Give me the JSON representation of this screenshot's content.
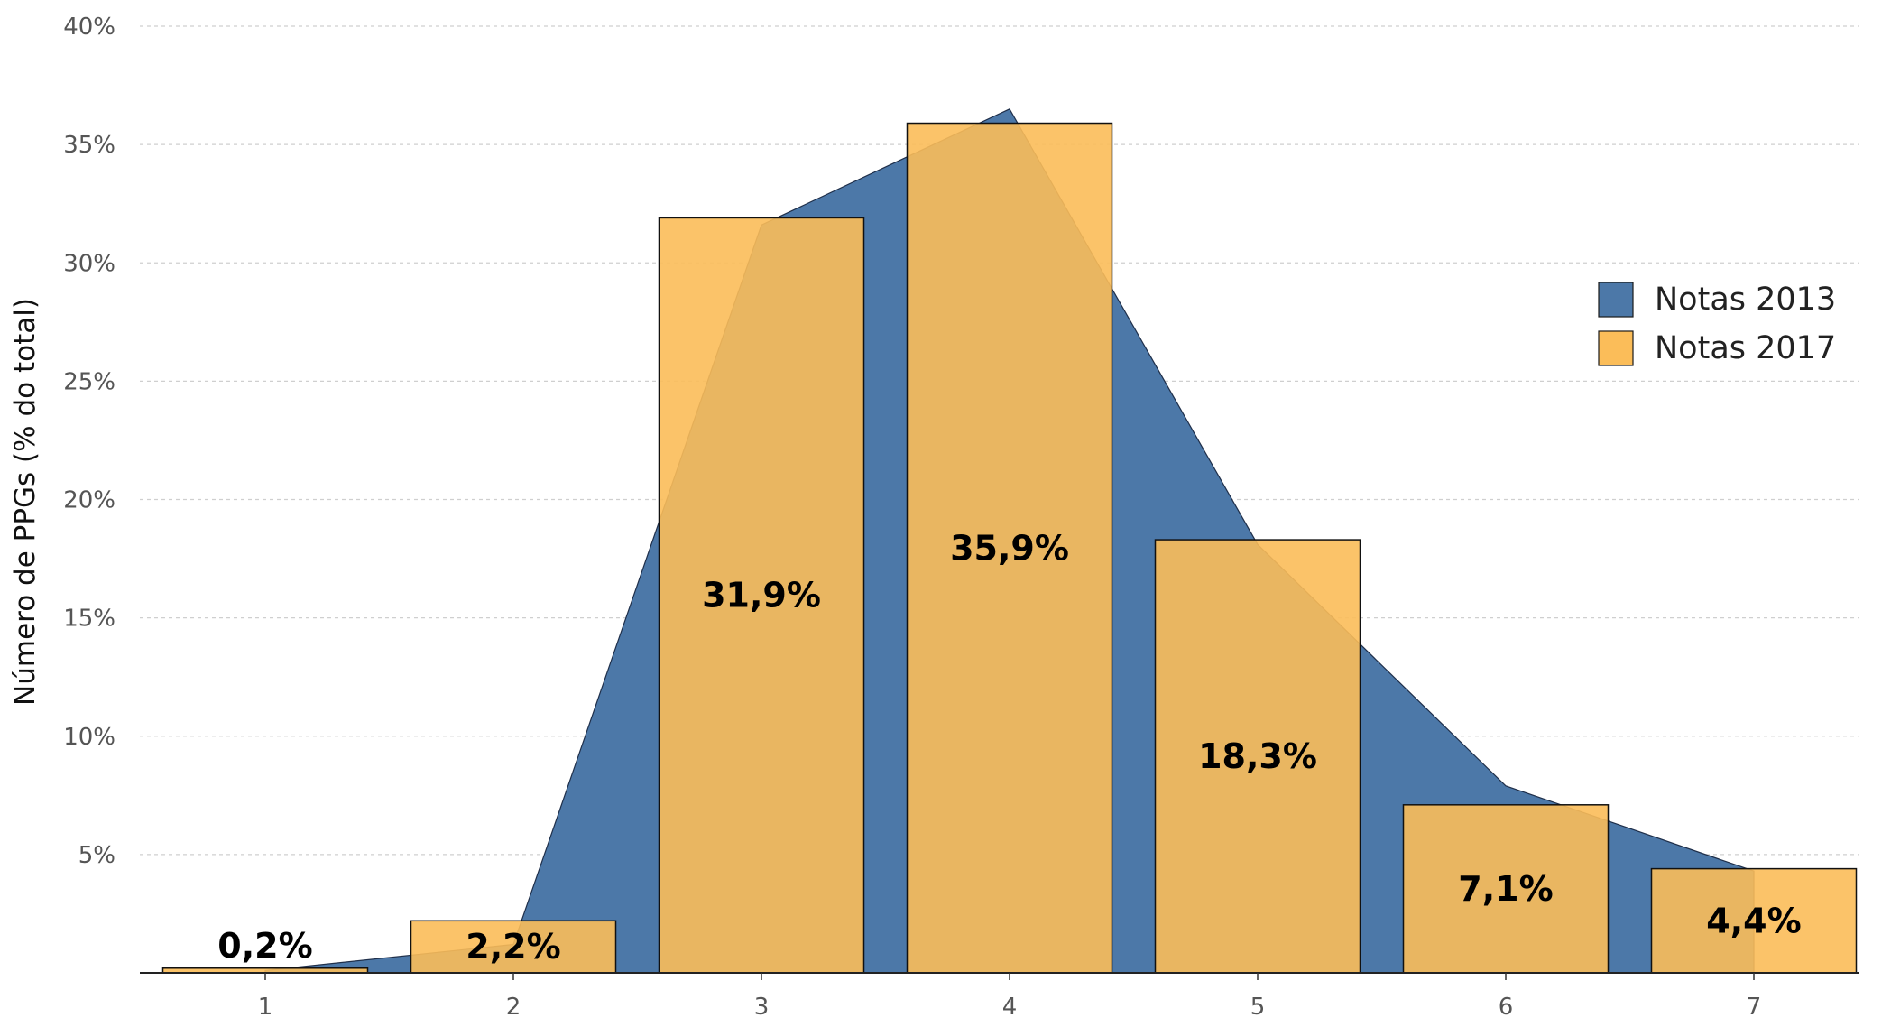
{
  "chart_data": {
    "type": "bar",
    "categories": [
      "1",
      "2",
      "3",
      "4",
      "5",
      "6",
      "7"
    ],
    "ylabel": "Número de PPGs (% do total)",
    "xlabel": "",
    "ylim": [
      0,
      40
    ],
    "yticks": [
      {
        "value": 5,
        "label": "5%"
      },
      {
        "value": 10,
        "label": "10%"
      },
      {
        "value": 15,
        "label": "15%"
      },
      {
        "value": 20,
        "label": "20%"
      },
      {
        "value": 25,
        "label": "25%"
      },
      {
        "value": 30,
        "label": "30%"
      },
      {
        "value": 35,
        "label": "35%"
      },
      {
        "value": 40,
        "label": "40%"
      }
    ],
    "grid": true,
    "legend_position": "top-right",
    "series": [
      {
        "name": "Notas 2013",
        "type": "area",
        "color": "#4c78a8",
        "values": [
          0.1,
          1.2,
          31.6,
          36.5,
          18.1,
          7.9,
          4.3
        ]
      },
      {
        "name": "Notas 2017",
        "type": "bar",
        "color": "#fbbd59",
        "values": [
          0.2,
          2.2,
          31.9,
          35.9,
          18.3,
          7.1,
          4.4
        ],
        "data_labels": [
          "0,2%",
          "2,2%",
          "31,9%",
          "35,9%",
          "18,3%",
          "7,1%",
          "4,4%"
        ]
      }
    ]
  }
}
